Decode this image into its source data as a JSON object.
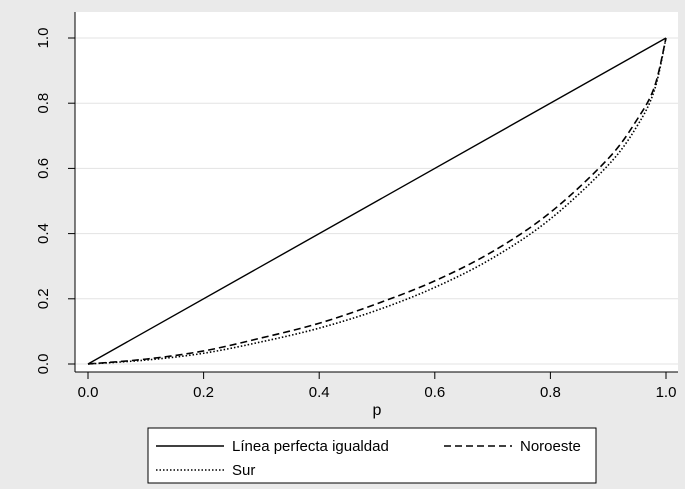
{
  "chart_data": {
    "type": "line",
    "title": "",
    "xlabel": "p",
    "ylabel": "",
    "xlim": [
      0,
      1
    ],
    "ylim": [
      0,
      1
    ],
    "x_ticks": [
      "0.0",
      "0.2",
      "0.4",
      "0.6",
      "0.8",
      "1.0"
    ],
    "y_ticks": [
      "0.0",
      "0.2",
      "0.4",
      "0.6",
      "0.8",
      "1.0"
    ],
    "grid": "horizontal",
    "legend_position": "bottom",
    "series": [
      {
        "name": "Línea perfecta igualdad",
        "style": "solid",
        "x": [
          0,
          1
        ],
        "y": [
          0,
          1
        ]
      },
      {
        "name": "Noroeste",
        "style": "dashed",
        "x": [
          0,
          0.1,
          0.2,
          0.3,
          0.4,
          0.5,
          0.6,
          0.7,
          0.8,
          0.9,
          0.95,
          0.98,
          1.0
        ],
        "y": [
          0,
          0.015,
          0.04,
          0.08,
          0.125,
          0.185,
          0.255,
          0.345,
          0.465,
          0.63,
          0.75,
          0.85,
          1.0
        ]
      },
      {
        "name": "Sur",
        "style": "dotted",
        "x": [
          0,
          0.1,
          0.2,
          0.3,
          0.4,
          0.5,
          0.6,
          0.7,
          0.8,
          0.9,
          0.95,
          0.98,
          1.0
        ],
        "y": [
          0,
          0.012,
          0.033,
          0.068,
          0.11,
          0.165,
          0.235,
          0.325,
          0.445,
          0.61,
          0.73,
          0.84,
          1.0
        ]
      }
    ]
  }
}
